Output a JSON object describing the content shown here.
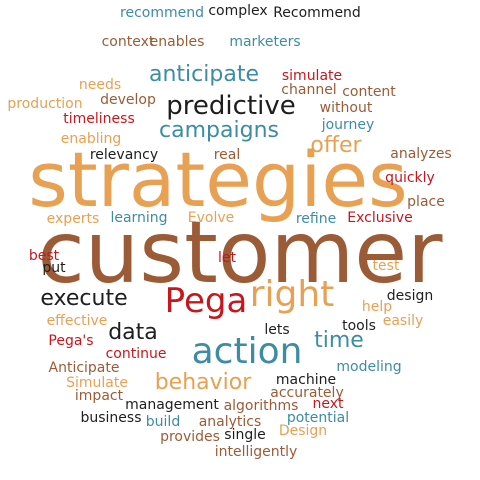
{
  "palette": {
    "brown": "#9c5b37",
    "orange": "#e8a052",
    "teal": "#3d8ca3",
    "red": "#c8161d",
    "black": "#1e1e1e"
  },
  "words": [
    {
      "text": "customer",
      "color": "brown"
    },
    {
      "text": "strategies",
      "color": "orange"
    },
    {
      "text": "Pega",
      "color": "red"
    },
    {
      "text": "right",
      "color": "orange"
    },
    {
      "text": "action",
      "color": "teal"
    },
    {
      "text": "predictive",
      "color": "black"
    },
    {
      "text": "anticipate",
      "color": "teal"
    },
    {
      "text": "campaigns",
      "color": "teal"
    },
    {
      "text": "execute",
      "color": "black"
    },
    {
      "text": "offer",
      "color": "orange"
    },
    {
      "text": "data",
      "color": "black"
    },
    {
      "text": "time",
      "color": "teal"
    },
    {
      "text": "behavior",
      "color": "orange"
    },
    {
      "text": "recommend",
      "color": "teal"
    },
    {
      "text": "complex",
      "color": "black"
    },
    {
      "text": "Recommend",
      "color": "black"
    },
    {
      "text": "context",
      "color": "brown"
    },
    {
      "text": "enables",
      "color": "brown"
    },
    {
      "text": "marketers",
      "color": "teal"
    },
    {
      "text": "simulate",
      "color": "red"
    },
    {
      "text": "needs",
      "color": "orange"
    },
    {
      "text": "channel",
      "color": "brown"
    },
    {
      "text": "content",
      "color": "brown"
    },
    {
      "text": "production",
      "color": "orange"
    },
    {
      "text": "develop",
      "color": "brown"
    },
    {
      "text": "without",
      "color": "brown"
    },
    {
      "text": "timeliness",
      "color": "red"
    },
    {
      "text": "journey",
      "color": "teal"
    },
    {
      "text": "enabling",
      "color": "orange"
    },
    {
      "text": "real",
      "color": "brown"
    },
    {
      "text": "relevancy",
      "color": "black"
    },
    {
      "text": "analyzes",
      "color": "brown"
    },
    {
      "text": "quickly",
      "color": "red"
    },
    {
      "text": "place",
      "color": "brown"
    },
    {
      "text": "experts",
      "color": "orange"
    },
    {
      "text": "learning",
      "color": "teal"
    },
    {
      "text": "Evolve",
      "color": "orange"
    },
    {
      "text": "refine",
      "color": "teal"
    },
    {
      "text": "Exclusive",
      "color": "red"
    },
    {
      "text": "best",
      "color": "red"
    },
    {
      "text": "put",
      "color": "black"
    },
    {
      "text": "let",
      "color": "red"
    },
    {
      "text": "test",
      "color": "orange"
    },
    {
      "text": "help",
      "color": "orange"
    },
    {
      "text": "design",
      "color": "black"
    },
    {
      "text": "effective",
      "color": "orange"
    },
    {
      "text": "lets",
      "color": "black"
    },
    {
      "text": "tools",
      "color": "black"
    },
    {
      "text": "easily",
      "color": "orange"
    },
    {
      "text": "Pega's",
      "color": "red"
    },
    {
      "text": "continue",
      "color": "red"
    },
    {
      "text": "modeling",
      "color": "teal"
    },
    {
      "text": "Anticipate",
      "color": "brown"
    },
    {
      "text": "machine",
      "color": "black"
    },
    {
      "text": "accurately",
      "color": "brown"
    },
    {
      "text": "Simulate",
      "color": "orange"
    },
    {
      "text": "impact",
      "color": "brown"
    },
    {
      "text": "next",
      "color": "red"
    },
    {
      "text": "management",
      "color": "black"
    },
    {
      "text": "algorithms",
      "color": "brown"
    },
    {
      "text": "potential",
      "color": "teal"
    },
    {
      "text": "business",
      "color": "black"
    },
    {
      "text": "build",
      "color": "teal"
    },
    {
      "text": "analytics",
      "color": "brown"
    },
    {
      "text": "provides",
      "color": "brown"
    },
    {
      "text": "single",
      "color": "black"
    },
    {
      "text": "Design",
      "color": "orange"
    },
    {
      "text": "intelligently",
      "color": "brown"
    }
  ]
}
